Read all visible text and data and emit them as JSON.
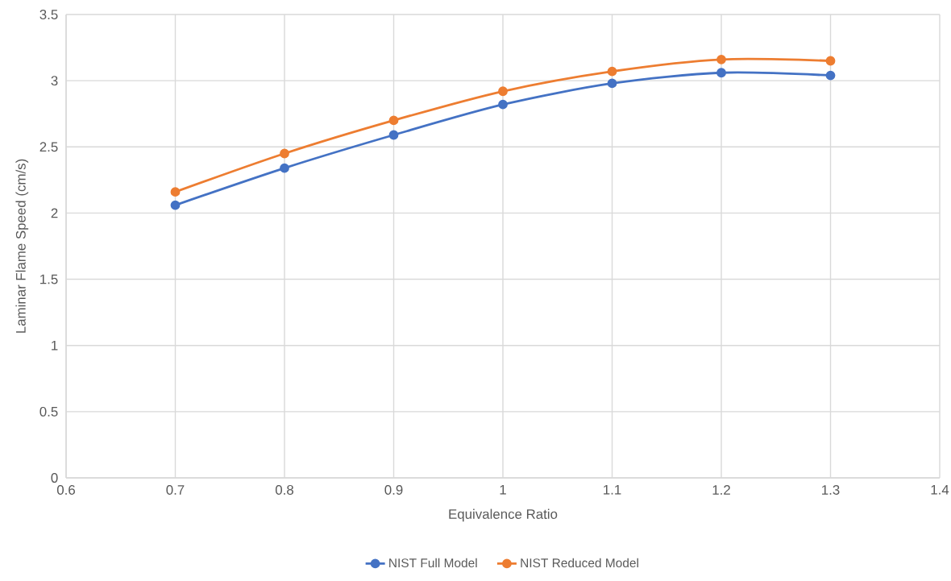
{
  "chart_data": {
    "type": "line",
    "xlabel": "Equivalence Ratio",
    "ylabel": "Laminar Flame Speed (cm/s)",
    "x": [
      0.7,
      0.8,
      0.9,
      1.0,
      1.1,
      1.2,
      1.3
    ],
    "series": [
      {
        "name": "NIST Full Model",
        "color": "#4472c4",
        "values": [
          2.06,
          2.34,
          2.59,
          2.82,
          2.98,
          3.06,
          3.04
        ]
      },
      {
        "name": "NIST Reduced Model",
        "color": "#ed7d31",
        "values": [
          2.16,
          2.45,
          2.7,
          2.92,
          3.07,
          3.16,
          3.15
        ]
      }
    ],
    "xlim": [
      0.6,
      1.4
    ],
    "xticks": [
      0.6,
      0.7,
      0.8,
      0.9,
      1,
      1.1,
      1.2,
      1.3,
      1.4
    ],
    "ylim": [
      0,
      3.5
    ],
    "yticks": [
      0,
      0.5,
      1,
      1.5,
      2,
      2.5,
      3,
      3.5
    ],
    "grid": true,
    "legend": "bottom",
    "marker": "circle",
    "line_style": "solid"
  }
}
